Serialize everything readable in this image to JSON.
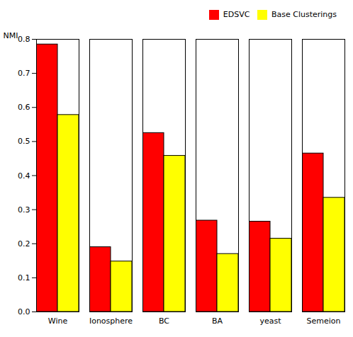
{
  "chart_data": {
    "type": "bar",
    "categories": [
      "Wine",
      "Ionosphere",
      "BC",
      "BA",
      "yeast",
      "Semeion"
    ],
    "series": [
      {
        "name": "EDSVC",
        "color": "#ff0000",
        "values": [
          0.785,
          0.19,
          0.525,
          0.268,
          0.265,
          0.465
        ]
      },
      {
        "name": "Base Clusterings",
        "color": "#ffff00",
        "values": [
          0.578,
          0.148,
          0.458,
          0.17,
          0.215,
          0.335
        ]
      }
    ],
    "ylabel": "NMI",
    "ylim": [
      0,
      0.8
    ],
    "yticks": [
      {
        "value": 0,
        "label": "0.0"
      },
      0.1,
      0.2,
      0.3,
      0.4,
      0.5,
      0.6,
      0.7,
      0.8
    ],
    "legend": "upper right"
  }
}
